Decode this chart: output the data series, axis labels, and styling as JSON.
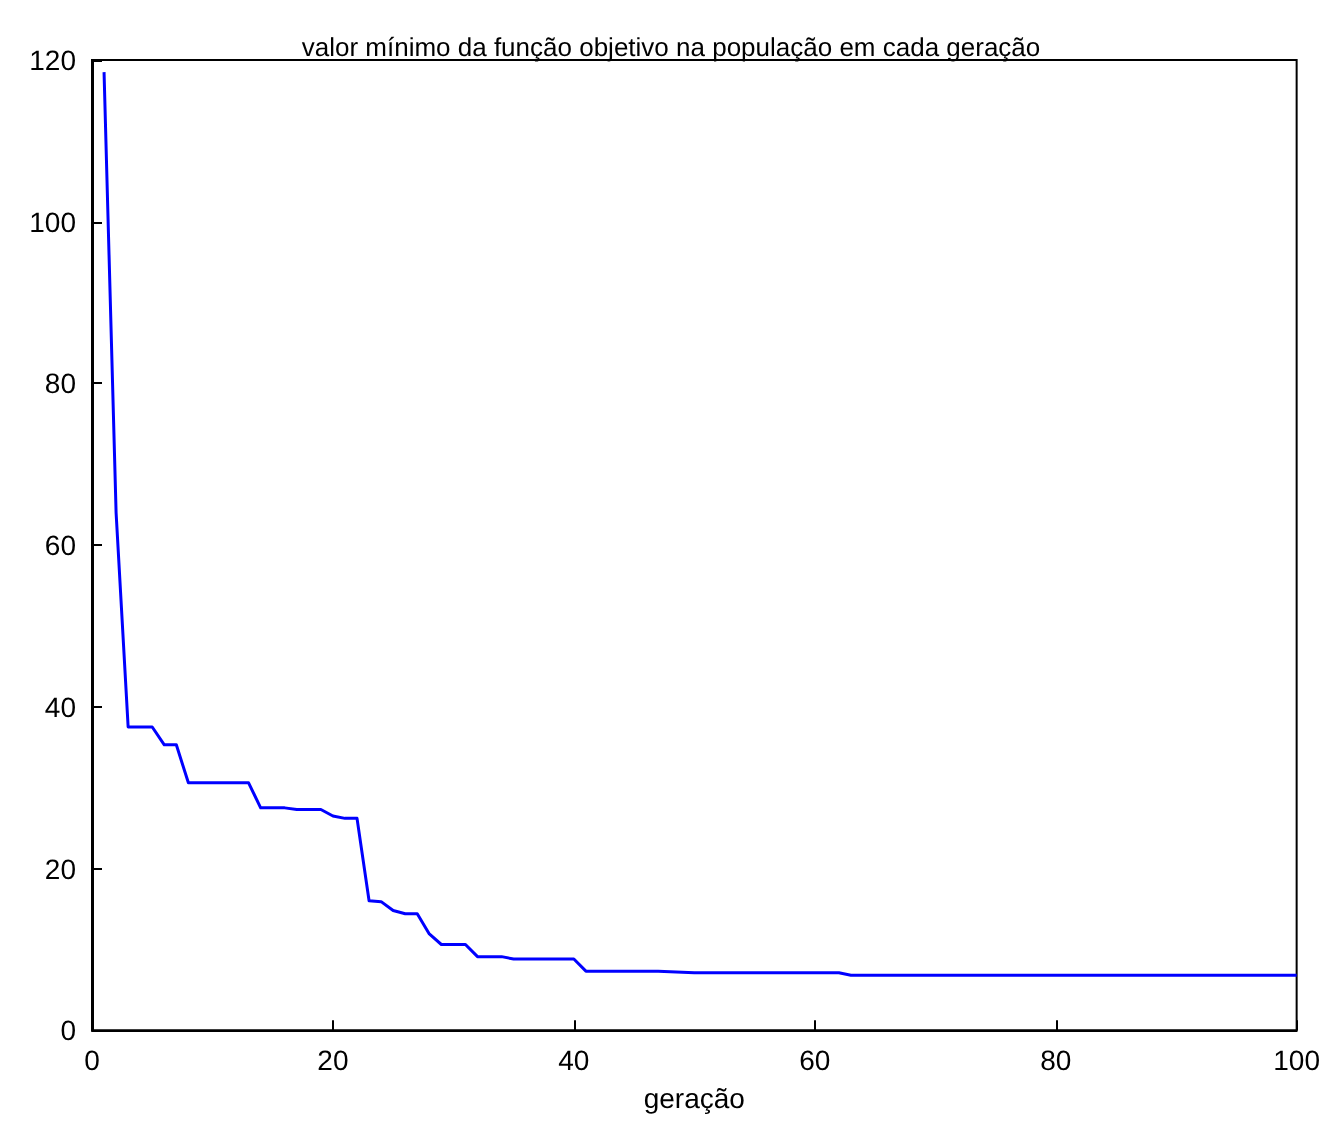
{
  "chart_data": {
    "type": "line",
    "title": "valor mínimo da função objetivo na população em cada geração",
    "xlabel": "geração",
    "x": [
      1,
      2,
      3,
      5,
      6,
      7,
      8,
      13,
      14,
      16,
      17,
      19,
      20,
      21,
      22,
      23,
      24,
      25,
      26,
      27,
      28,
      29,
      31,
      32,
      34,
      35,
      40,
      41,
      47,
      50,
      62,
      63,
      78,
      100
    ],
    "series": [
      {
        "color": "#0000ff",
        "values": [
          118.5,
          64,
          37.5,
          37.5,
          35.3,
          35.3,
          30.6,
          30.6,
          27.5,
          27.5,
          27.3,
          27.3,
          26.5,
          26.2,
          26.2,
          16,
          15.9,
          14.8,
          14.4,
          14.4,
          11.9,
          10.6,
          10.6,
          9.1,
          9.1,
          8.8,
          8.8,
          7.3,
          7.3,
          7.1,
          7.1,
          6.8,
          6.8,
          6.8
        ]
      }
    ],
    "xlim": [
      0,
      100
    ],
    "xticks": [
      0,
      20,
      40,
      60,
      80,
      100
    ],
    "ylim": [
      0,
      120
    ],
    "yticks": [
      0,
      20,
      40,
      60,
      80,
      100,
      120
    ],
    "grid": false,
    "marker": "none",
    "line_style": "solid"
  }
}
